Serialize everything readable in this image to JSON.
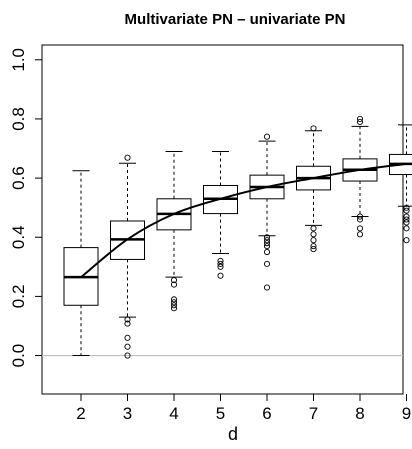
{
  "chart_data": {
    "type": "boxplot",
    "title": "Multivariate PN – univariate PN",
    "xlabel": "d",
    "ylabel": "",
    "categories": [
      "2",
      "3",
      "4",
      "5",
      "6",
      "7",
      "8",
      "9"
    ],
    "ylim": [
      -0.13,
      1.05
    ],
    "yticks": [
      0.0,
      0.2,
      0.4,
      0.6,
      0.8,
      1.0
    ],
    "ytick_labels": [
      "0.0",
      "0.2",
      "0.4",
      "0.6",
      "0.8",
      "1.0"
    ],
    "reference_line": {
      "y": 0.0,
      "color": "#bebebe"
    },
    "boxes": [
      {
        "category": "2",
        "whisker_low": 0.0,
        "q1": 0.17,
        "median": 0.265,
        "q3": 0.365,
        "whisker_high": 0.625,
        "outliers": []
      },
      {
        "category": "3",
        "whisker_low": 0.13,
        "q1": 0.325,
        "median": 0.393,
        "q3": 0.455,
        "whisker_high": 0.65,
        "outliers": [
          0.669,
          0.122,
          0.108,
          0.06,
          0.03,
          0.0
        ]
      },
      {
        "category": "4",
        "whisker_low": 0.265,
        "q1": 0.425,
        "median": 0.479,
        "q3": 0.53,
        "whisker_high": 0.69,
        "outliers": [
          0.255,
          0.24,
          0.19,
          0.18,
          0.17,
          0.16
        ]
      },
      {
        "category": "5",
        "whisker_low": 0.345,
        "q1": 0.48,
        "median": 0.53,
        "q3": 0.575,
        "whisker_high": 0.69,
        "outliers": [
          0.32,
          0.31,
          0.3,
          0.27
        ]
      },
      {
        "category": "6",
        "whisker_low": 0.405,
        "q1": 0.53,
        "median": 0.57,
        "q3": 0.61,
        "whisker_high": 0.725,
        "outliers": [
          0.74,
          0.4,
          0.39,
          0.38,
          0.37,
          0.35,
          0.31,
          0.23
        ]
      },
      {
        "category": "7",
        "whisker_low": 0.44,
        "q1": 0.56,
        "median": 0.6,
        "q3": 0.64,
        "whisker_high": 0.76,
        "outliers": [
          0.768,
          0.43,
          0.41,
          0.39,
          0.37,
          0.36
        ]
      },
      {
        "category": "8",
        "whisker_low": 0.47,
        "q1": 0.59,
        "median": 0.628,
        "q3": 0.665,
        "whisker_high": 0.775,
        "outliers": [
          0.8,
          0.79,
          0.47,
          0.46,
          0.43,
          0.41
        ]
      },
      {
        "category": "9",
        "whisker_low": 0.505,
        "q1": 0.612,
        "median": 0.648,
        "q3": 0.68,
        "whisker_high": 0.78,
        "outliers": [
          0.5,
          0.49,
          0.47,
          0.46,
          0.45,
          0.43,
          0.39
        ]
      }
    ],
    "trend_line": {
      "x": [
        "2",
        "3",
        "4",
        "5",
        "6",
        "7",
        "8",
        "9"
      ],
      "y": [
        0.265,
        0.393,
        0.479,
        0.53,
        0.57,
        0.6,
        0.628,
        0.648
      ]
    },
    "grid": false
  }
}
